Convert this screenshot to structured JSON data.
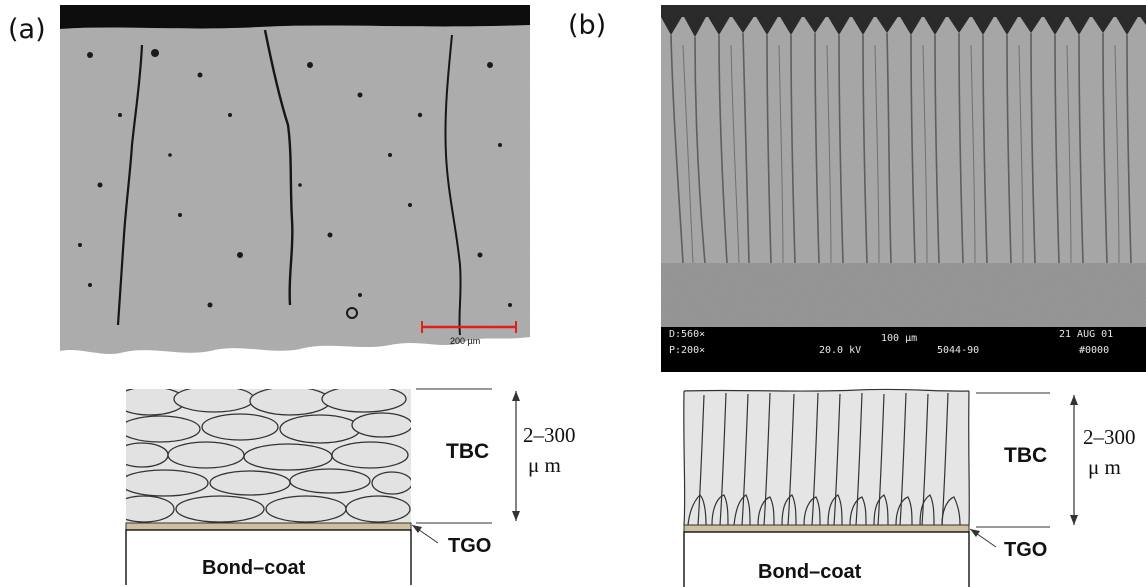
{
  "panel_a": {
    "label": "(a)",
    "scale_bar": "200 µm",
    "schematic": {
      "layer_label": "TBC",
      "thickness_line1": "2–300",
      "thickness_line2": "μ m",
      "tgo_label": "TGO",
      "substrate_label": "Bond–coat"
    }
  },
  "panel_b": {
    "label": "(b)",
    "sem_bar": {
      "magnification_d": "D:560×",
      "magnification_p": "P:200×",
      "scale": "100 µm",
      "voltage": "20.0 kV",
      "id": "5044-90",
      "date": "21 AUG 01",
      "frame": "#0000"
    },
    "schematic": {
      "layer_label": "TBC",
      "thickness_line1": "2–300",
      "thickness_line2": "μ m",
      "tgo_label": "TGO",
      "substrate_label": "Bond–coat"
    }
  },
  "colors": {
    "coating_gray": "#a9a9a9",
    "columnar_gray": "#a6a6a6",
    "tgo_tan": "#cdbf9f",
    "scale_red": "#e02020",
    "schematic_fill": "#e5e5e5"
  }
}
